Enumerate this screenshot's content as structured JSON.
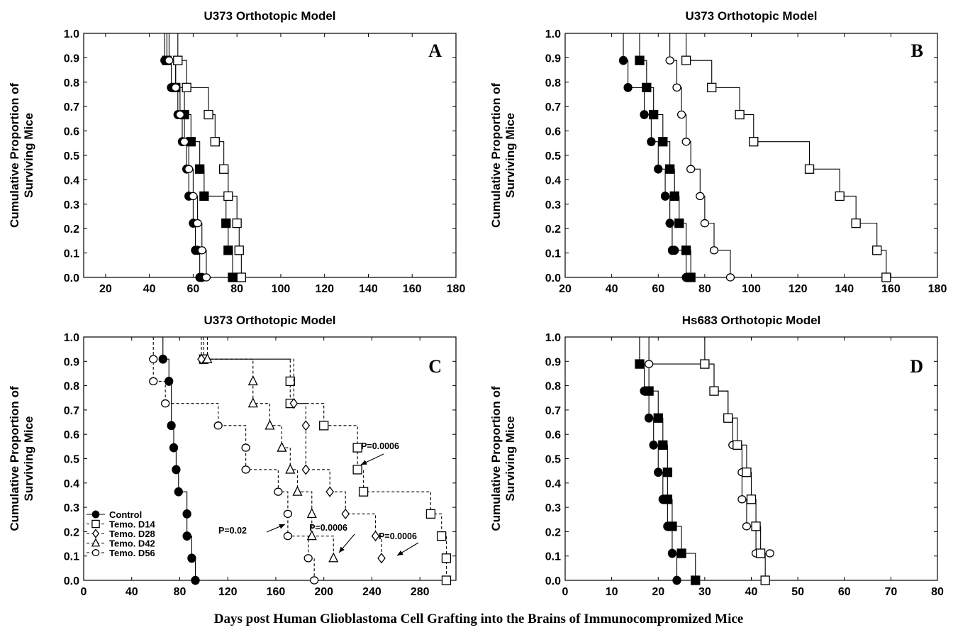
{
  "figure": {
    "xlabel": "Days post Human Glioblastoma Cell Grafting into the Brains of Immunocompromized Mice",
    "ylabel_line1": "Cumulative Proportion of",
    "ylabel_line2": "Surviving Mice"
  },
  "chart_data": [
    {
      "panel": "A",
      "type": "line",
      "title": "U373 Orthotopic Model",
      "xlim": [
        10,
        180
      ],
      "xticks": [
        20,
        40,
        60,
        80,
        100,
        120,
        140,
        160,
        180
      ],
      "ylim": [
        0,
        1
      ],
      "yticks": [
        "0.0",
        "0.1",
        "0.2",
        "0.3",
        "0.4",
        "0.5",
        "0.6",
        "0.7",
        "0.8",
        "0.9",
        "1.0"
      ],
      "grid": false,
      "series": [
        {
          "marker": "circle-filled",
          "dash": false,
          "x": [
            47,
            50,
            53,
            55,
            57,
            58,
            60,
            61,
            62,
            63,
            64
          ],
          "y": [
            0.889,
            0.778,
            0.667,
            0.556,
            0.444,
            0.333,
            0.222,
            0.111,
            0.111,
            0.0,
            0.0
          ]
        },
        {
          "marker": "square-filled",
          "dash": false,
          "x": [
            48,
            52,
            56,
            59,
            63,
            65,
            75,
            76,
            78
          ],
          "y": [
            0.889,
            0.778,
            0.667,
            0.556,
            0.444,
            0.333,
            0.222,
            0.111,
            0.0
          ]
        },
        {
          "marker": "circle-open",
          "dash": false,
          "x": [
            49,
            52,
            54,
            56,
            58,
            60,
            62,
            64,
            66
          ],
          "y": [
            0.889,
            0.778,
            0.667,
            0.556,
            0.444,
            0.333,
            0.222,
            0.111,
            0.0
          ]
        },
        {
          "marker": "square-open",
          "dash": false,
          "x": [
            53,
            57,
            67,
            70,
            74,
            76,
            80,
            81,
            82
          ],
          "y": [
            0.889,
            0.778,
            0.667,
            0.556,
            0.444,
            0.333,
            0.222,
            0.111,
            0.0
          ]
        }
      ]
    },
    {
      "panel": "B",
      "type": "line",
      "title": "U373 Orthotopic Model",
      "xlim": [
        20,
        180
      ],
      "xticks": [
        20,
        40,
        60,
        80,
        100,
        120,
        140,
        160,
        180
      ],
      "ylim": [
        0,
        1
      ],
      "yticks": [
        "0.0",
        "0.1",
        "0.2",
        "0.3",
        "0.4",
        "0.5",
        "0.6",
        "0.7",
        "0.8",
        "0.9",
        "1.0"
      ],
      "grid": false,
      "series": [
        {
          "marker": "circle-filled",
          "dash": false,
          "x": [
            45,
            47,
            54,
            57,
            60,
            63,
            65,
            66,
            67,
            72
          ],
          "y": [
            0.889,
            0.778,
            0.667,
            0.556,
            0.444,
            0.333,
            0.222,
            0.111,
            0.111,
            0.0
          ]
        },
        {
          "marker": "square-filled",
          "dash": false,
          "x": [
            52,
            55,
            58,
            62,
            65,
            67,
            69,
            72,
            74
          ],
          "y": [
            0.889,
            0.778,
            0.667,
            0.556,
            0.444,
            0.333,
            0.222,
            0.111,
            0.0
          ]
        },
        {
          "marker": "circle-open",
          "dash": false,
          "x": [
            65,
            68,
            70,
            72,
            74,
            78,
            80,
            84,
            91
          ],
          "y": [
            0.889,
            0.778,
            0.667,
            0.556,
            0.444,
            0.333,
            0.222,
            0.111,
            0.0
          ]
        },
        {
          "marker": "square-open",
          "dash": false,
          "x": [
            72,
            83,
            95,
            101,
            125,
            138,
            145,
            154,
            158
          ],
          "y": [
            0.889,
            0.778,
            0.667,
            0.556,
            0.444,
            0.333,
            0.222,
            0.111,
            0.0
          ]
        }
      ]
    },
    {
      "panel": "C",
      "type": "line",
      "title": "U373 Orthotopic Model",
      "xlim": [
        0,
        310
      ],
      "xticks": [
        0,
        40,
        80,
        120,
        160,
        200,
        240,
        280
      ],
      "ylim": [
        0,
        1
      ],
      "yticks": [
        "0.0",
        "0.1",
        "0.2",
        "0.3",
        "0.4",
        "0.5",
        "0.6",
        "0.7",
        "0.8",
        "0.9",
        "1.0"
      ],
      "grid": false,
      "legend_position": "bottom-left",
      "series": [
        {
          "name": "Control",
          "marker": "circle-filled",
          "dash": false,
          "x": [
            66,
            71,
            73,
            75,
            77,
            79,
            86,
            86,
            90,
            93
          ],
          "y": [
            0.909,
            0.818,
            0.636,
            0.545,
            0.455,
            0.364,
            0.273,
            0.182,
            0.091,
            0.0
          ]
        },
        {
          "name": "Temo. D14",
          "marker": "square-open",
          "dash": true,
          "x": [
            100,
            172,
            172,
            200,
            228,
            228,
            233,
            289,
            298,
            302,
            302
          ],
          "y": [
            0.909,
            0.818,
            0.727,
            0.636,
            0.545,
            0.455,
            0.364,
            0.273,
            0.182,
            0.091,
            0.0
          ]
        },
        {
          "name": "Temo. D28",
          "marker": "diamond-open",
          "dash": true,
          "x": [
            98,
            175,
            185,
            185,
            205,
            218,
            243,
            248
          ],
          "y": [
            0.909,
            0.727,
            0.636,
            0.455,
            0.364,
            0.273,
            0.182,
            0.091
          ]
        },
        {
          "name": "Temo. D42",
          "marker": "triangle-open",
          "dash": true,
          "x": [
            103,
            141,
            141,
            155,
            165,
            172,
            178,
            190,
            190,
            208
          ],
          "y": [
            0.909,
            0.818,
            0.727,
            0.636,
            0.545,
            0.455,
            0.364,
            0.273,
            0.182,
            0.091
          ]
        },
        {
          "name": "Temo. D56",
          "marker": "circle-open",
          "dash": true,
          "x": [
            58,
            58,
            68,
            112,
            135,
            135,
            162,
            170,
            170,
            187,
            192
          ],
          "y": [
            0.909,
            0.818,
            0.727,
            0.636,
            0.545,
            0.455,
            0.364,
            0.273,
            0.182,
            0.091,
            0.0
          ]
        }
      ],
      "annotations": [
        {
          "text": "P=0.0006",
          "x": 229,
          "y": 0.45
        },
        {
          "text": "P=0.02",
          "x": 170,
          "y": 0.18
        },
        {
          "text": "P=0.0006",
          "x": 211,
          "y": 0.1
        },
        {
          "text": "P=0.0006",
          "x": 248,
          "y": 0.09
        }
      ]
    },
    {
      "panel": "D",
      "type": "line",
      "title": "Hs683 Orthotopic Model",
      "xlim": [
        0,
        80
      ],
      "xticks": [
        0,
        10,
        20,
        30,
        40,
        50,
        60,
        70,
        80
      ],
      "ylim": [
        0,
        1
      ],
      "yticks": [
        "0.0",
        "0.1",
        "0.2",
        "0.3",
        "0.4",
        "0.5",
        "0.6",
        "0.7",
        "0.8",
        "0.9",
        "1.0"
      ],
      "grid": false,
      "series": [
        {
          "marker": "circle-filled",
          "dash": false,
          "x": [
            16,
            17,
            18,
            19,
            20,
            21,
            22,
            23,
            24
          ],
          "y": [
            0.889,
            0.778,
            0.667,
            0.556,
            0.444,
            0.333,
            0.222,
            0.111,
            0.0
          ]
        },
        {
          "marker": "square-filled",
          "dash": false,
          "x": [
            16,
            18,
            20,
            21,
            22,
            22,
            23,
            25,
            28
          ],
          "y": [
            0.889,
            0.778,
            0.667,
            0.556,
            0.444,
            0.333,
            0.222,
            0.111,
            0.0
          ]
        },
        {
          "marker": "circle-open",
          "dash": false,
          "x": [
            18,
            32,
            35,
            36,
            38,
            38,
            39,
            41,
            44
          ],
          "y": [
            0.889,
            0.778,
            0.667,
            0.556,
            0.444,
            0.333,
            0.222,
            0.111,
            0.111
          ]
        },
        {
          "marker": "square-open",
          "dash": false,
          "x": [
            30,
            32,
            35,
            37,
            39,
            40,
            41,
            42,
            43
          ],
          "y": [
            0.889,
            0.778,
            0.667,
            0.556,
            0.444,
            0.333,
            0.222,
            0.111,
            0.0
          ]
        }
      ]
    }
  ]
}
